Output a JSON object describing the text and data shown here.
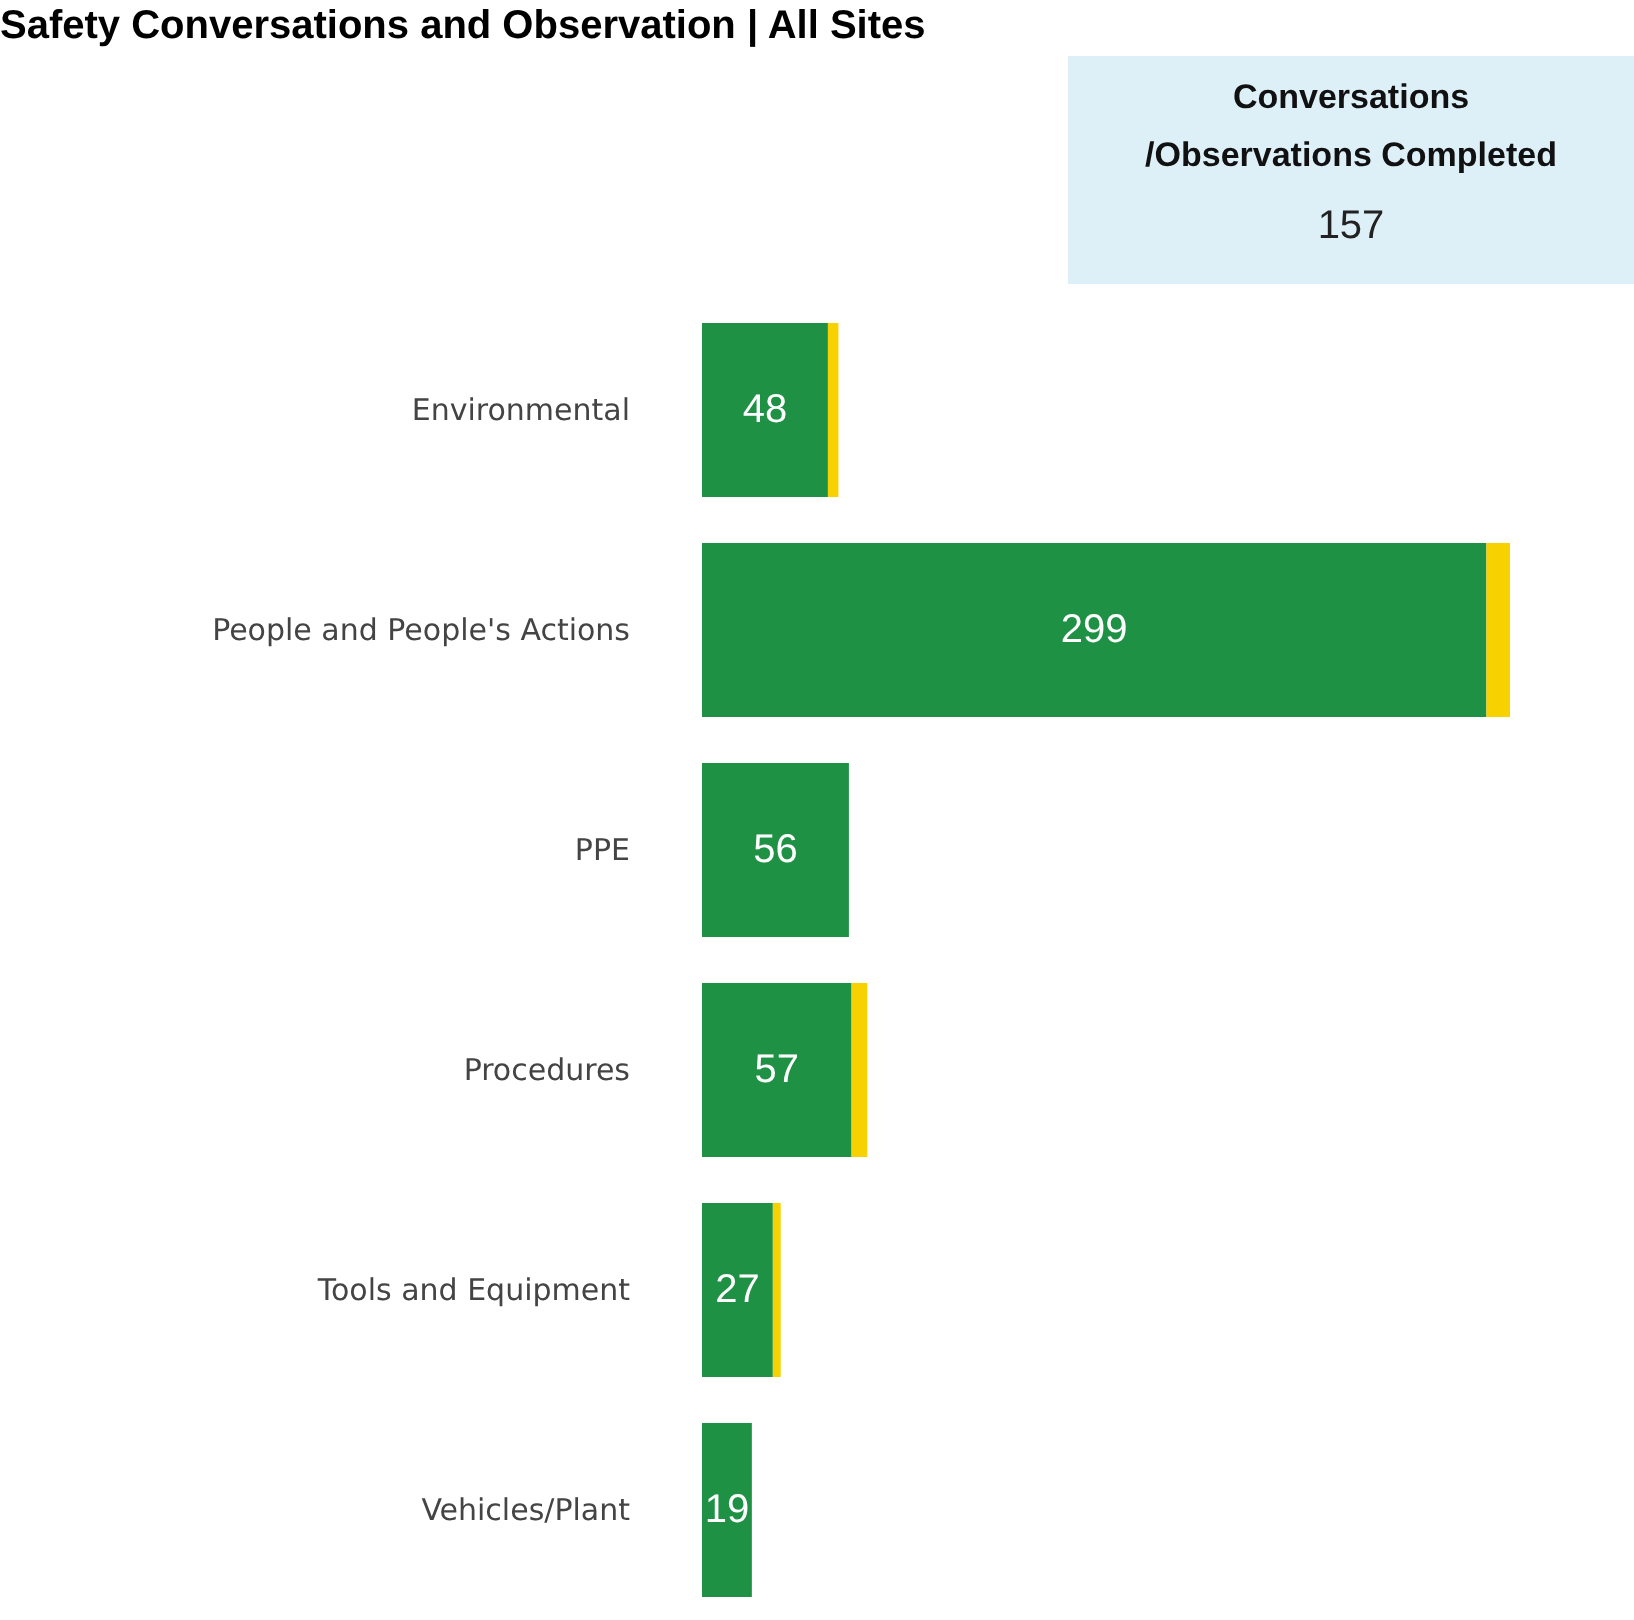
{
  "chart_data": [
    {
      "type": "bar",
      "orientation": "horizontal",
      "stacked": true,
      "title": "Safety Conversations and Observation | All Sites",
      "categories": [
        "Environmental",
        "People and People's Actions",
        "PPE",
        "Procedures",
        "Tools and Equipment",
        "Vehicles/Plant"
      ],
      "series": [
        {
          "color": "#1e9145",
          "values": [
            48,
            299,
            56,
            57,
            27,
            19
          ],
          "value_labels": [
            "48",
            "299",
            "56",
            "57",
            "27",
            "19"
          ]
        },
        {
          "color": "#f8d200",
          "values": [
            4,
            9,
            null,
            6,
            3,
            null
          ]
        }
      ],
      "grid": false,
      "tick_labels": "y"
    },
    {
      "type": "other",
      "title": "Conversations /Observations Completed",
      "annotations": [
        "157"
      ]
    }
  ]
}
